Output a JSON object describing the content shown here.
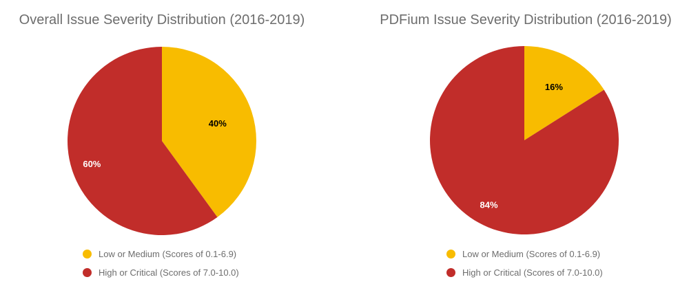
{
  "colors": {
    "low_medium": "#f8bc00",
    "high_critical": "#c12d2a"
  },
  "chart_data": [
    {
      "type": "pie",
      "title": "Overall Issue Severity Distribution (2016-2019)",
      "slices": [
        {
          "name": "Low or Medium (Scores of 0.1-6.9)",
          "value": 40,
          "label": "40%",
          "color": "#f8bc00",
          "label_color": "#000000"
        },
        {
          "name": "High or Critical (Scores of 7.0-10.0)",
          "value": 60,
          "label": "60%",
          "color": "#c12d2a",
          "label_color": "#ffffff"
        }
      ],
      "legend": [
        "Low or Medium (Scores of 0.1-6.9)",
        "High or Critical (Scores of 7.0-10.0)"
      ],
      "legend_position": "bottom"
    },
    {
      "type": "pie",
      "title": "PDFium Issue Severity Distribution (2016-2019)",
      "slices": [
        {
          "name": "Low or Medium (Scores of 0.1-6.9)",
          "value": 16,
          "label": "16%",
          "color": "#f8bc00",
          "label_color": "#000000"
        },
        {
          "name": "High or Critical (Scores of 7.0-10.0)",
          "value": 84,
          "label": "84%",
          "color": "#c12d2a",
          "label_color": "#ffffff"
        }
      ],
      "legend": [
        "Low or Medium (Scores of 0.1-6.9)",
        "High or Critical (Scores of 7.0-10.0)"
      ],
      "legend_position": "bottom"
    }
  ]
}
